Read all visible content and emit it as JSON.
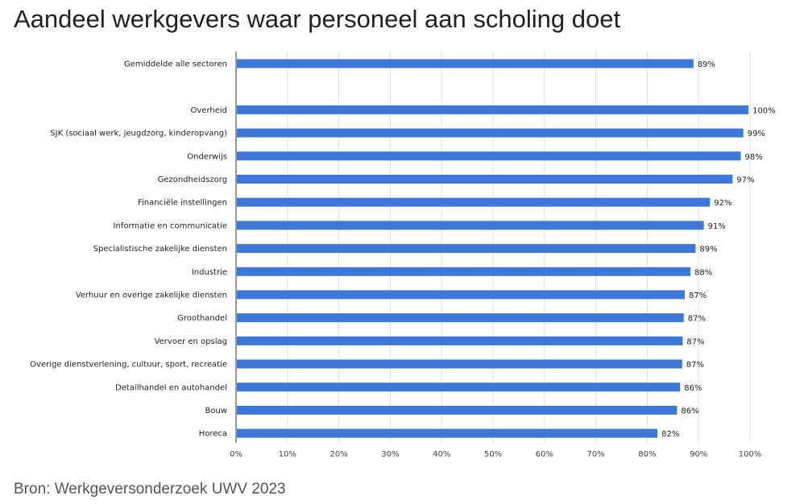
{
  "title": "Aandeel werkgevers waar personeel aan scholing doet",
  "source": "Bron: Werkgeversonderzoek UWV 2023",
  "colors": {
    "bar": "#3d78d8",
    "grid": "#e0e0e0",
    "axis": "#333333"
  },
  "chart_data": {
    "type": "bar",
    "orientation": "horizontal",
    "title": "Aandeel werkgevers waar personeel aan scholing doet",
    "xlabel": "",
    "ylabel": "",
    "xlim": [
      0,
      100
    ],
    "x_ticks": [
      "0%",
      "10%",
      "20%",
      "30%",
      "40%",
      "50%",
      "60%",
      "70%",
      "80%",
      "90%",
      "100%"
    ],
    "grid": true,
    "legend": "none",
    "categories": [
      "Gemiddelde alle sectoren",
      "",
      "Overheid",
      "SJK (sociaal werk, jeugdzorg, kinderopvang)",
      "Onderwijs",
      "Gezondheidszorg",
      "Financiële instellingen",
      "Informatie en communicatie",
      "Specialistische zakelijke diensten",
      "Industrie",
      "Verhuur en overige zakelijke diensten",
      "Groothandel",
      "Vervoer en opslag",
      "Overige dienstverlening, cultuur, sport, recreatie",
      "Detailhandel en autohandel",
      "Bouw",
      "Horeca"
    ],
    "values": [
      89,
      null,
      99.7,
      98.7,
      98.2,
      96.6,
      92.2,
      91.0,
      89.4,
      88.4,
      87.3,
      87.1,
      86.9,
      86.8,
      86.4,
      85.8,
      82.0
    ],
    "value_labels": [
      "89%",
      "",
      "100%",
      "99%",
      "98%",
      "97%",
      "92%",
      "91%",
      "89%",
      "88%",
      "87%",
      "87%",
      "87%",
      "87%",
      "86%",
      "86%",
      "82%"
    ]
  }
}
